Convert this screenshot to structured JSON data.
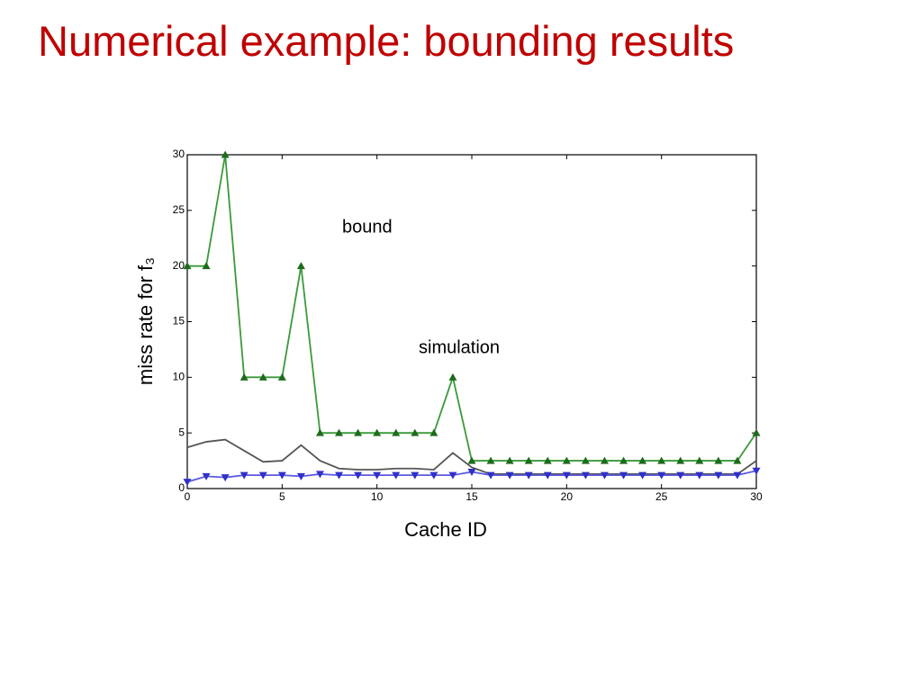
{
  "chart_data": {
    "type": "line",
    "title": "Numerical example: bounding results",
    "x_label": "Cache ID",
    "y_label": "miss rate for f₃",
    "x": [
      0,
      1,
      2,
      3,
      4,
      5,
      6,
      7,
      8,
      9,
      10,
      11,
      12,
      13,
      14,
      15,
      16,
      17,
      18,
      19,
      20,
      21,
      22,
      23,
      24,
      25,
      26,
      27,
      28,
      29,
      30
    ],
    "series": [
      {
        "color": "#3a9a3a",
        "marker": "triangle-up",
        "marker_color": "#1d6b1d",
        "values": [
          20,
          20,
          30,
          10,
          10,
          10,
          20,
          5,
          5,
          5,
          5,
          5,
          5,
          5,
          10,
          2.5,
          2.5,
          2.5,
          2.5,
          2.5,
          2.5,
          2.5,
          2.5,
          2.5,
          2.5,
          2.5,
          2.5,
          2.5,
          2.5,
          2.5,
          5
        ]
      },
      {
        "color": "#555555",
        "marker": "none",
        "values": [
          3.7,
          4.2,
          4.4,
          3.4,
          2.4,
          2.5,
          3.9,
          2.5,
          1.8,
          1.7,
          1.7,
          1.8,
          1.8,
          1.7,
          3.2,
          1.9,
          1.3,
          1.3,
          1.3,
          1.3,
          1.3,
          1.3,
          1.3,
          1.3,
          1.3,
          1.3,
          1.3,
          1.3,
          1.3,
          1.3,
          2.5
        ]
      },
      {
        "color": "#5a5ae0",
        "marker": "triangle-down",
        "marker_color": "#3030c8",
        "values": [
          0.6,
          1.1,
          1.0,
          1.2,
          1.2,
          1.2,
          1.1,
          1.3,
          1.2,
          1.2,
          1.2,
          1.2,
          1.2,
          1.2,
          1.2,
          1.5,
          1.2,
          1.2,
          1.2,
          1.2,
          1.2,
          1.2,
          1.2,
          1.2,
          1.2,
          1.2,
          1.2,
          1.2,
          1.2,
          1.2,
          1.6
        ]
      }
    ],
    "annotations": [
      {
        "text": "bound"
      },
      {
        "text": "simulation"
      }
    ],
    "xlim": [
      0,
      30
    ],
    "xticks": [
      0,
      5,
      10,
      15,
      20,
      25,
      30
    ],
    "ylim": [
      0,
      30
    ],
    "yticks": [
      0,
      5,
      10,
      15,
      20,
      25,
      30
    ],
    "grid": false
  }
}
